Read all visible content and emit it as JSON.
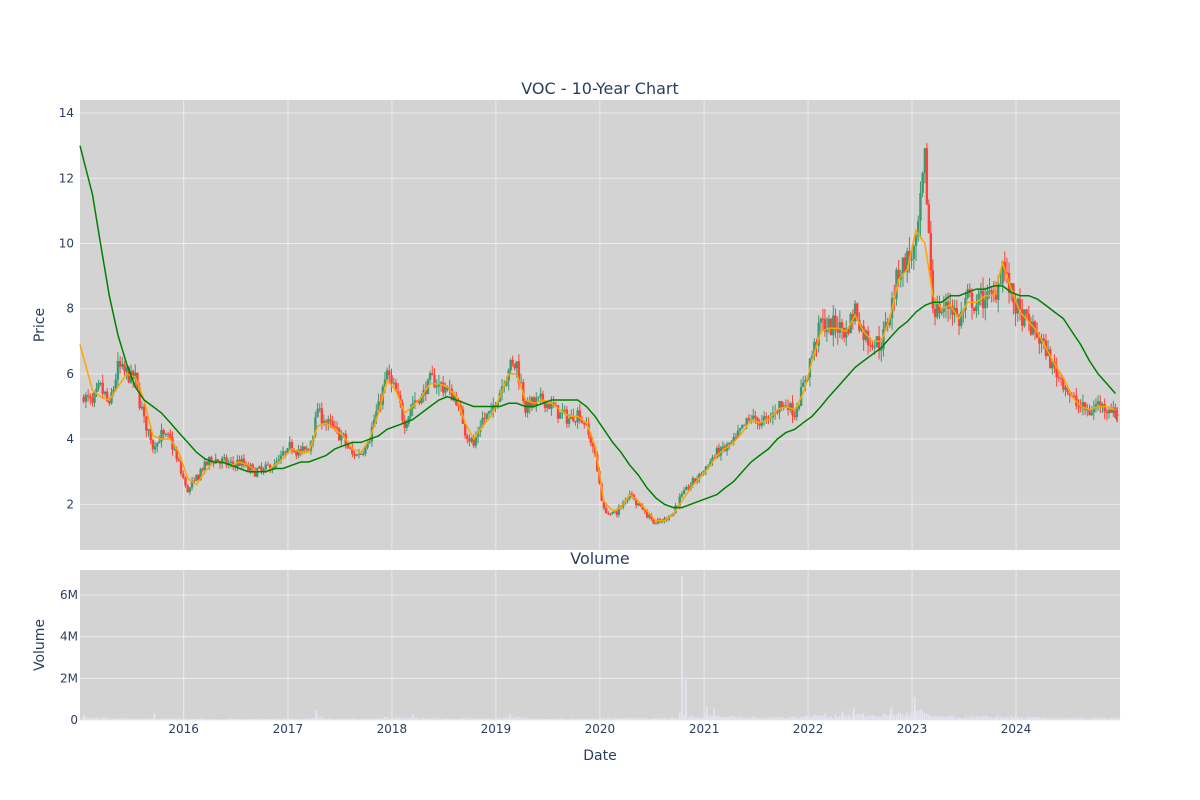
{
  "chart_data": [
    {
      "type": "candlestick",
      "title": "VOC - 10-Year Chart",
      "xlabel": "",
      "ylabel": "Price",
      "ylim": [
        0.6,
        14.4
      ],
      "yticks": [
        2,
        4,
        6,
        8,
        10,
        12,
        14
      ],
      "xlim": [
        "2015-01-02",
        "2024-12-31"
      ],
      "xticks": [
        "2016",
        "2017",
        "2018",
        "2019",
        "2020",
        "2021",
        "2022",
        "2023",
        "2024"
      ],
      "grid": true,
      "legend": "none",
      "colors": {
        "up": "#3d9970",
        "down": "#ff4136",
        "ma_short": "#ffa500",
        "ma_long": "#008000",
        "plot_bg": "#d3d3d3",
        "grid": "#ebebeb"
      },
      "series": [
        {
          "kind": "close",
          "x": [
            "2015-01",
            "2015-02",
            "2015-03",
            "2015-04",
            "2015-05",
            "2015-06",
            "2015-07",
            "2015-08",
            "2015-09",
            "2015-10",
            "2015-11",
            "2015-12",
            "2016-01",
            "2016-02",
            "2016-03",
            "2016-04",
            "2016-05",
            "2016-06",
            "2016-07",
            "2016-08",
            "2016-09",
            "2016-10",
            "2016-11",
            "2016-12",
            "2017-01",
            "2017-02",
            "2017-03",
            "2017-04",
            "2017-05",
            "2017-06",
            "2017-07",
            "2017-08",
            "2017-09",
            "2017-10",
            "2017-11",
            "2017-12",
            "2018-01",
            "2018-02",
            "2018-03",
            "2018-04",
            "2018-05",
            "2018-06",
            "2018-07",
            "2018-08",
            "2018-09",
            "2018-10",
            "2018-11",
            "2018-12",
            "2019-01",
            "2019-02",
            "2019-03",
            "2019-04",
            "2019-05",
            "2019-06",
            "2019-07",
            "2019-08",
            "2019-09",
            "2019-10",
            "2019-11",
            "2019-12",
            "2020-01",
            "2020-02",
            "2020-03",
            "2020-04",
            "2020-05",
            "2020-06",
            "2020-07",
            "2020-08",
            "2020-09",
            "2020-10",
            "2020-11",
            "2020-12",
            "2021-01",
            "2021-02",
            "2021-03",
            "2021-04",
            "2021-05",
            "2021-06",
            "2021-07",
            "2021-08",
            "2021-09",
            "2021-10",
            "2021-11",
            "2021-12",
            "2022-01",
            "2022-02",
            "2022-03",
            "2022-04",
            "2022-05",
            "2022-06",
            "2022-07",
            "2022-08",
            "2022-09",
            "2022-10",
            "2022-11",
            "2022-12",
            "2023-01",
            "2023-02",
            "2023-03",
            "2023-04",
            "2023-05",
            "2023-06",
            "2023-07",
            "2023-08",
            "2023-09",
            "2023-10",
            "2023-11",
            "2023-12",
            "2024-01",
            "2024-02",
            "2024-03",
            "2024-04",
            "2024-05",
            "2024-06",
            "2024-07",
            "2024-08",
            "2024-09",
            "2024-10",
            "2024-11",
            "2024-12"
          ],
          "values": [
            5.3,
            5.1,
            5.6,
            5.0,
            6.2,
            6.0,
            5.8,
            4.6,
            3.8,
            4.1,
            4.0,
            3.2,
            2.4,
            2.8,
            3.2,
            3.4,
            3.3,
            3.2,
            3.3,
            3.1,
            3.0,
            3.1,
            3.2,
            3.5,
            3.8,
            3.6,
            3.7,
            4.9,
            4.5,
            4.3,
            4.0,
            3.5,
            3.6,
            4.1,
            5.0,
            6.0,
            5.4,
            4.5,
            5.1,
            5.3,
            5.8,
            5.7,
            5.5,
            5.2,
            4.3,
            3.8,
            4.6,
            4.8,
            5.5,
            6.2,
            6.3,
            5.0,
            5.1,
            5.2,
            5.0,
            4.8,
            4.6,
            4.8,
            4.4,
            3.5,
            1.8,
            1.7,
            1.9,
            2.4,
            2.0,
            1.7,
            1.4,
            1.5,
            1.8,
            2.3,
            2.6,
            2.9,
            3.2,
            3.6,
            3.7,
            3.9,
            4.3,
            4.7,
            4.5,
            4.6,
            5.0,
            5.1,
            4.8,
            5.6,
            6.6,
            7.6,
            7.4,
            7.5,
            7.3,
            8.0,
            7.2,
            7.0,
            6.9,
            7.9,
            9.2,
            9.5,
            9.8,
            12.5,
            8.1,
            7.9,
            8.2,
            7.6,
            8.3,
            8.1,
            8.4,
            8.3,
            9.4,
            8.4,
            7.8,
            7.5,
            7.2,
            6.7,
            6.1,
            5.8,
            5.2,
            5.0,
            4.8,
            5.1,
            5.0,
            4.8
          ]
        },
        {
          "kind": "ma_short",
          "name": "",
          "values": [
            6.9,
            5.5,
            5.3,
            5.2,
            5.6,
            6.0,
            5.9,
            5.2,
            4.1,
            4.0,
            4.0,
            3.6,
            2.8,
            2.6,
            3.0,
            3.3,
            3.3,
            3.2,
            3.3,
            3.2,
            3.0,
            3.0,
            3.2,
            3.4,
            3.7,
            3.6,
            3.6,
            4.4,
            4.5,
            4.3,
            4.1,
            3.7,
            3.6,
            4.0,
            4.8,
            5.8,
            5.5,
            4.8,
            5.0,
            5.3,
            5.7,
            5.7,
            5.6,
            5.3,
            4.5,
            4.0,
            4.4,
            4.7,
            5.3,
            6.0,
            6.0,
            5.2,
            5.1,
            5.2,
            5.1,
            4.9,
            4.7,
            4.7,
            4.5,
            3.8,
            2.1,
            1.8,
            1.9,
            2.3,
            2.1,
            1.8,
            1.5,
            1.5,
            1.7,
            2.1,
            2.5,
            2.8,
            3.1,
            3.5,
            3.7,
            3.9,
            4.2,
            4.6,
            4.5,
            4.6,
            4.9,
            5.0,
            4.9,
            5.4,
            6.4,
            7.3,
            7.4,
            7.4,
            7.3,
            7.8,
            7.3,
            7.0,
            7.0,
            7.7,
            8.9,
            9.2,
            10.4,
            10.0,
            8.4,
            8.0,
            8.1,
            7.7,
            8.2,
            8.2,
            8.4,
            8.4,
            9.4,
            8.6,
            7.9,
            7.6,
            7.3,
            6.8,
            6.3,
            5.9,
            5.3,
            5.0,
            4.9,
            5.0,
            5.0,
            4.9
          ]
        },
        {
          "kind": "ma_long",
          "name": "",
          "values": [
            13.0,
            11.5,
            10.0,
            8.4,
            7.2,
            6.3,
            5.6,
            5.2,
            5.0,
            4.8,
            4.5,
            4.2,
            3.9,
            3.6,
            3.4,
            3.3,
            3.3,
            3.2,
            3.1,
            3.0,
            3.0,
            3.0,
            3.1,
            3.1,
            3.2,
            3.3,
            3.3,
            3.4,
            3.5,
            3.7,
            3.8,
            3.9,
            3.9,
            4.0,
            4.1,
            4.3,
            4.4,
            4.5,
            4.6,
            4.8,
            5.0,
            5.2,
            5.3,
            5.2,
            5.1,
            5.0,
            5.0,
            5.0,
            5.0,
            5.1,
            5.1,
            5.0,
            5.0,
            5.1,
            5.2,
            5.2,
            5.2,
            5.2,
            5.0,
            4.7,
            4.3,
            3.9,
            3.6,
            3.2,
            2.9,
            2.5,
            2.2,
            2.0,
            1.9,
            1.9,
            2.0,
            2.1,
            2.2,
            2.3,
            2.5,
            2.7,
            3.0,
            3.3,
            3.5,
            3.7,
            4.0,
            4.2,
            4.3,
            4.5,
            4.7,
            5.0,
            5.3,
            5.6,
            5.9,
            6.2,
            6.4,
            6.6,
            6.8,
            7.1,
            7.4,
            7.6,
            7.9,
            8.1,
            8.2,
            8.2,
            8.4,
            8.4,
            8.5,
            8.6,
            8.6,
            8.7,
            8.7,
            8.5,
            8.4,
            8.4,
            8.3,
            8.1,
            7.9,
            7.7,
            7.3,
            6.9,
            6.4,
            6.0,
            5.7,
            5.4
          ]
        }
      ]
    },
    {
      "type": "bar",
      "title": "Volume",
      "xlabel": "Date",
      "ylabel": "Volume",
      "ylim": [
        0,
        7200000
      ],
      "yticks": [
        {
          "v": 0,
          "label": "0"
        },
        {
          "v": 2000000,
          "label": "2M"
        },
        {
          "v": 4000000,
          "label": "4M"
        },
        {
          "v": 6000000,
          "label": "6M"
        }
      ],
      "xticks": [
        "2016",
        "2017",
        "2018",
        "2019",
        "2020",
        "2021",
        "2022",
        "2023",
        "2024"
      ],
      "grid": true,
      "colors": {
        "bar": "#e8e2f2",
        "plot_bg": "#d3d3d3",
        "grid": "#ebebeb"
      },
      "spikes": [
        {
          "x": "2015-01-15",
          "v": 250000
        },
        {
          "x": "2015-09-20",
          "v": 300000
        },
        {
          "x": "2017-04-10",
          "v": 450000
        },
        {
          "x": "2018-03-15",
          "v": 250000
        },
        {
          "x": "2019-02-20",
          "v": 300000
        },
        {
          "x": "2020-10-15",
          "v": 6900000
        },
        {
          "x": "2020-10-28",
          "v": 1900000
        },
        {
          "x": "2021-01-10",
          "v": 650000
        },
        {
          "x": "2021-02-05",
          "v": 550000
        },
        {
          "x": "2022-05-01",
          "v": 420000
        },
        {
          "x": "2022-06-10",
          "v": 550000
        },
        {
          "x": "2022-10-20",
          "v": 600000
        },
        {
          "x": "2023-01-10",
          "v": 1100000
        },
        {
          "x": "2023-02-05",
          "v": 500000
        }
      ],
      "monthly": [
        120000,
        110000,
        100000,
        90000,
        80000,
        80000,
        70000,
        70000,
        60000,
        70000,
        80000,
        60000,
        60000,
        60000,
        60000,
        50000,
        50000,
        60000,
        60000,
        60000,
        60000,
        50000,
        60000,
        60000,
        60000,
        60000,
        70000,
        150000,
        70000,
        70000,
        70000,
        80000,
        60000,
        70000,
        90000,
        110000,
        110000,
        100000,
        90000,
        80000,
        80000,
        70000,
        70000,
        70000,
        80000,
        90000,
        90000,
        80000,
        80000,
        90000,
        110000,
        100000,
        70000,
        70000,
        70000,
        60000,
        60000,
        70000,
        60000,
        70000,
        90000,
        90000,
        120000,
        110000,
        90000,
        80000,
        80000,
        90000,
        100000,
        300000,
        160000,
        150000,
        200000,
        180000,
        150000,
        140000,
        130000,
        130000,
        120000,
        120000,
        130000,
        130000,
        140000,
        160000,
        200000,
        230000,
        200000,
        210000,
        220000,
        260000,
        230000,
        220000,
        230000,
        260000,
        300000,
        290000,
        380000,
        250000,
        180000,
        150000,
        150000,
        140000,
        140000,
        140000,
        140000,
        150000,
        160000,
        150000,
        130000,
        120000,
        120000,
        110000,
        100000,
        100000,
        90000,
        90000,
        90000,
        90000,
        90000,
        100000
      ]
    }
  ]
}
